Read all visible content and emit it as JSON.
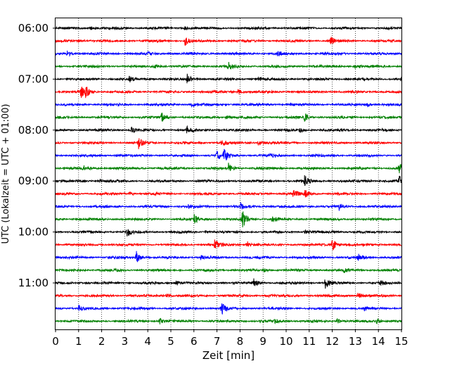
{
  "chart_data": {
    "type": "line",
    "title": "",
    "xlabel": "Zeit  [min]",
    "ylabel": "UTC (Lokalzeit = UTC + 01:00)",
    "xlim": [
      0,
      15
    ],
    "x_ticks": [
      0,
      1,
      2,
      3,
      4,
      5,
      6,
      7,
      8,
      9,
      10,
      11,
      12,
      13,
      14,
      15
    ],
    "y_tick_labels": [
      "06:00",
      "07:00",
      "08:00",
      "09:00",
      "10:00",
      "11:00"
    ],
    "trace_start_times": [
      "06:00",
      "06:15",
      "06:30",
      "06:45",
      "07:00",
      "07:15",
      "07:30",
      "07:45",
      "08:00",
      "08:15",
      "08:30",
      "08:45",
      "09:00",
      "09:15",
      "09:30",
      "09:45",
      "10:00",
      "10:15",
      "10:30",
      "10:45",
      "11:00",
      "11:15",
      "11:30",
      "11:45"
    ],
    "trace_colors": [
      "#000000",
      "#ff0000",
      "#0000ff",
      "#008000"
    ],
    "x_grid": "dotted",
    "traces": [
      {
        "events": [
          [
            1.5,
            0.3
          ],
          [
            5.6,
            0.25
          ],
          [
            9.1,
            0.2
          ]
        ]
      },
      {
        "events": [
          [
            5.6,
            1.0
          ],
          [
            11.9,
            0.9
          ],
          [
            1.0,
            0.2
          ]
        ]
      },
      {
        "events": [
          [
            0.5,
            0.5
          ],
          [
            9.6,
            0.5
          ],
          [
            4.0,
            0.2
          ]
        ]
      },
      {
        "events": [
          [
            7.5,
            0.6
          ],
          [
            4.3,
            0.3
          ],
          [
            13.0,
            0.25
          ]
        ]
      },
      {
        "events": [
          [
            5.7,
            0.8
          ],
          [
            15.0,
            0.8
          ],
          [
            3.2,
            0.4
          ],
          [
            8.8,
            0.3
          ]
        ]
      },
      {
        "events": [
          [
            1.1,
            0.9
          ],
          [
            1.3,
            0.8
          ],
          [
            7.9,
            0.5
          ]
        ]
      },
      {
        "events": [
          [
            5.9,
            0.3
          ],
          [
            13.5,
            0.3
          ],
          [
            10.2,
            0.2
          ]
        ]
      },
      {
        "events": [
          [
            4.6,
            0.7
          ],
          [
            10.8,
            0.7
          ],
          [
            7.4,
            0.3
          ]
        ]
      },
      {
        "events": [
          [
            3.3,
            0.6
          ],
          [
            5.7,
            0.6
          ],
          [
            10.6,
            0.3
          ]
        ]
      },
      {
        "events": [
          [
            3.6,
            0.9
          ],
          [
            7.2,
            0.6
          ],
          [
            8.8,
            0.5
          ]
        ]
      },
      {
        "events": [
          [
            7.3,
            1.0
          ],
          [
            7.0,
            0.7
          ],
          [
            9.3,
            0.3
          ]
        ]
      },
      {
        "events": [
          [
            1.2,
            0.4
          ],
          [
            7.5,
            0.8
          ],
          [
            14.9,
            0.9
          ]
        ]
      },
      {
        "events": [
          [
            10.8,
            0.8
          ],
          [
            14.9,
            0.8
          ],
          [
            1.9,
            0.2
          ]
        ]
      },
      {
        "events": [
          [
            10.3,
            0.7
          ],
          [
            10.8,
            0.7
          ],
          [
            3.2,
            0.3
          ]
        ]
      },
      {
        "events": [
          [
            12.3,
            0.5
          ],
          [
            8.0,
            0.6
          ],
          [
            5.7,
            0.3
          ]
        ]
      },
      {
        "events": [
          [
            8.1,
            1.6
          ],
          [
            6.0,
            0.8
          ],
          [
            9.4,
            0.5
          ]
        ]
      },
      {
        "events": [
          [
            3.1,
            0.7
          ],
          [
            10.8,
            0.3
          ],
          [
            6.5,
            0.2
          ]
        ]
      },
      {
        "events": [
          [
            6.9,
            0.7
          ],
          [
            8.3,
            0.6
          ],
          [
            12.0,
            1.0
          ]
        ]
      },
      {
        "events": [
          [
            3.5,
            1.0
          ],
          [
            13.1,
            0.6
          ],
          [
            6.3,
            0.3
          ]
        ]
      },
      {
        "events": [
          [
            9.0,
            0.3
          ],
          [
            12.5,
            0.3
          ],
          [
            2.6,
            0.2
          ]
        ]
      },
      {
        "events": [
          [
            11.7,
            1.1
          ],
          [
            8.6,
            0.7
          ],
          [
            5.2,
            0.5
          ],
          [
            14.1,
            0.5
          ]
        ]
      },
      {
        "events": [
          [
            13.1,
            0.5
          ],
          [
            4.8,
            0.3
          ],
          [
            9.2,
            0.2
          ]
        ]
      },
      {
        "events": [
          [
            7.2,
            1.0
          ],
          [
            1.0,
            0.5
          ],
          [
            13.4,
            0.3
          ]
        ]
      },
      {
        "events": [
          [
            4.5,
            0.5
          ],
          [
            12.2,
            0.5
          ],
          [
            13.9,
            0.5
          ],
          [
            9.5,
            0.3
          ]
        ]
      }
    ]
  }
}
